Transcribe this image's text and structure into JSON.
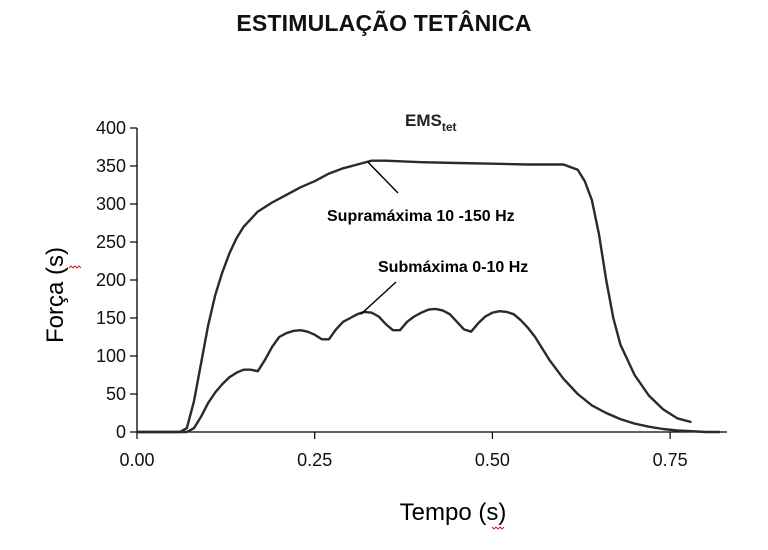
{
  "page": {
    "title": "ESTIMULAÇÃO TETÂNICA"
  },
  "chart_data": {
    "type": "line",
    "title": "EMS",
    "title_subscript": "tet",
    "xlabel": "Tempo (s)",
    "ylabel": "Força (s)",
    "xlim": [
      0,
      0.83
    ],
    "ylim": [
      0,
      400
    ],
    "x_ticks": [
      "0.00",
      "0.25",
      "0.50",
      "0.75"
    ],
    "x_tick_values": [
      0,
      0.25,
      0.5,
      0.75
    ],
    "y_ticks": [
      "0",
      "50",
      "100",
      "150",
      "200",
      "250",
      "300",
      "350",
      "400"
    ],
    "y_tick_values": [
      0,
      50,
      100,
      150,
      200,
      250,
      300,
      350,
      400
    ],
    "grid": false,
    "series": [
      {
        "name": "Supramáxima 10 -150 Hz",
        "color": "#2a2a2a",
        "x": [
          0.0,
          0.06,
          0.07,
          0.08,
          0.09,
          0.1,
          0.11,
          0.12,
          0.13,
          0.14,
          0.15,
          0.17,
          0.19,
          0.21,
          0.23,
          0.25,
          0.27,
          0.29,
          0.31,
          0.33,
          0.35,
          0.4,
          0.45,
          0.5,
          0.55,
          0.6,
          0.62,
          0.63,
          0.64,
          0.65,
          0.66,
          0.67,
          0.68,
          0.7,
          0.72,
          0.74,
          0.76,
          0.78
        ],
        "y": [
          0,
          0,
          5,
          40,
          90,
          140,
          180,
          210,
          235,
          255,
          270,
          290,
          302,
          312,
          322,
          330,
          340,
          347,
          352,
          357,
          357,
          355,
          354,
          353,
          352,
          352,
          345,
          330,
          305,
          260,
          200,
          150,
          115,
          75,
          48,
          30,
          18,
          13
        ]
      },
      {
        "name": "Submáxima 0-10 Hz",
        "color": "#2a2a2a",
        "x": [
          0.0,
          0.07,
          0.08,
          0.09,
          0.1,
          0.11,
          0.12,
          0.13,
          0.14,
          0.15,
          0.16,
          0.17,
          0.18,
          0.19,
          0.2,
          0.21,
          0.22,
          0.23,
          0.24,
          0.25,
          0.26,
          0.27,
          0.28,
          0.29,
          0.3,
          0.31,
          0.32,
          0.33,
          0.34,
          0.35,
          0.36,
          0.37,
          0.38,
          0.39,
          0.4,
          0.41,
          0.42,
          0.43,
          0.44,
          0.45,
          0.46,
          0.47,
          0.48,
          0.49,
          0.5,
          0.51,
          0.52,
          0.53,
          0.54,
          0.55,
          0.56,
          0.57,
          0.58,
          0.6,
          0.62,
          0.64,
          0.66,
          0.68,
          0.7,
          0.72,
          0.74,
          0.76,
          0.78,
          0.8,
          0.82
        ],
        "y": [
          0,
          0,
          5,
          20,
          38,
          52,
          63,
          72,
          78,
          82,
          82,
          80,
          95,
          112,
          125,
          130,
          133,
          134,
          132,
          128,
          122,
          122,
          135,
          145,
          150,
          155,
          158,
          157,
          152,
          142,
          134,
          134,
          145,
          152,
          157,
          161,
          162,
          160,
          155,
          145,
          135,
          132,
          143,
          152,
          157,
          159,
          158,
          155,
          147,
          137,
          125,
          110,
          95,
          70,
          50,
          35,
          25,
          17,
          11,
          7,
          4,
          2,
          1,
          0,
          0
        ]
      }
    ],
    "annotations": [
      {
        "text": "Supramáxima 10 -150 Hz",
        "series": 0,
        "points_to_x": 0.325,
        "points_to_y": 355
      },
      {
        "text": "Submáxima 0-10 Hz",
        "series": 1,
        "points_to_x": 0.315,
        "points_to_y": 155
      }
    ]
  }
}
